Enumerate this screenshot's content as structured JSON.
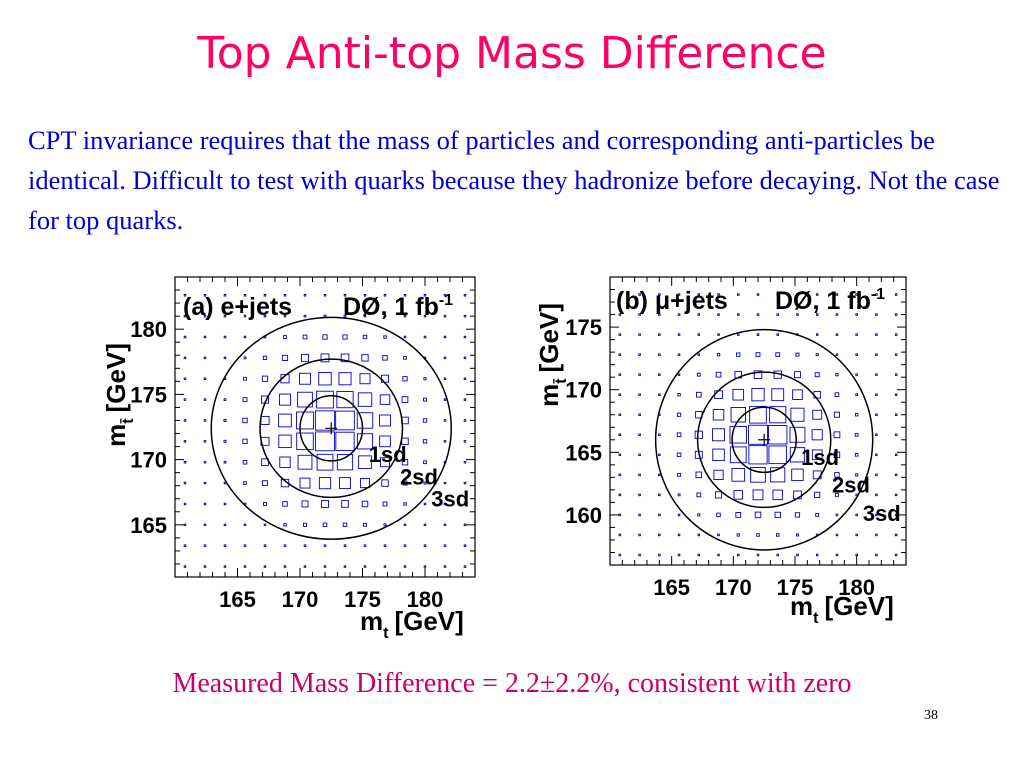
{
  "slide": {
    "title": "Top Anti-top Mass Difference",
    "intro": "CPT invariance requires that the mass of particles and corresponding anti-particles be identical. Difficult to test with quarks because they hadronize before decaying. Not the case for top quarks.",
    "conclusion": "Measured Mass Difference = 2.2±2.2%, consistent with zero",
    "page_number": "38"
  },
  "chart_data": [
    {
      "type": "heatmap",
      "panel_label": "(a) e+jets",
      "experiment_label": "DØ, 1 fb",
      "experiment_label_superscript": "-1",
      "xlabel": "m",
      "xlabel_subscript": "t",
      "xlabel_unit": "[GeV]",
      "ylabel": "m",
      "ylabel_subscript": "t̄",
      "ylabel_unit": "[GeV]",
      "xlim": [
        160,
        184
      ],
      "ylim": [
        161,
        184
      ],
      "x_ticks": [
        165,
        170,
        175,
        180
      ],
      "y_ticks": [
        165,
        170,
        175,
        180
      ],
      "best_fit": {
        "x": 172.5,
        "y": 172.4
      },
      "grid_step": 1.6,
      "contours": [
        {
          "label": "1sd",
          "rx": 2.5,
          "ry": 2.5,
          "label_x": 175.5,
          "label_y": 169.8
        },
        {
          "label": "2sd",
          "rx": 5.7,
          "ry": 5.3,
          "label_x": 178.0,
          "label_y": 168.1
        },
        {
          "label": "3sd",
          "rx": 9.6,
          "ry": 8.5,
          "label_x": 180.5,
          "label_y": 166.4
        }
      ],
      "grid_color": "#0000cc",
      "contour_color": "#000000"
    },
    {
      "type": "heatmap",
      "panel_label": "(b) μ+jets",
      "experiment_label": "DØ, 1 fb",
      "experiment_label_superscript": "-1",
      "xlabel": "m",
      "xlabel_subscript": "t",
      "xlabel_unit": "[GeV]",
      "ylabel": "m",
      "ylabel_subscript": "t̄",
      "ylabel_unit": "[GeV]",
      "xlim": [
        160,
        184
      ],
      "ylim": [
        156,
        179
      ],
      "x_ticks": [
        165,
        170,
        175,
        180
      ],
      "y_ticks": [
        160,
        165,
        170,
        175
      ],
      "best_fit": {
        "x": 172.5,
        "y": 166.0
      },
      "grid_step": 1.6,
      "contours": [
        {
          "label": "1sd",
          "rx": 2.6,
          "ry": 2.6,
          "label_x": 175.5,
          "label_y": 164.0
        },
        {
          "label": "2sd",
          "rx": 5.4,
          "ry": 5.4,
          "label_x": 178.0,
          "label_y": 161.8
        },
        {
          "label": "3sd",
          "rx": 8.8,
          "ry": 8.8,
          "label_x": 180.5,
          "label_y": 159.5
        }
      ],
      "grid_color": "#0000cc",
      "contour_color": "#000000"
    }
  ]
}
